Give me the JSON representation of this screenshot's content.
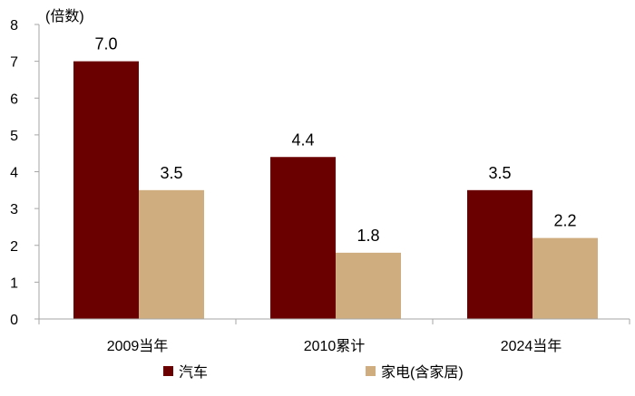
{
  "chart_data": {
    "type": "bar",
    "unit_label": "(倍数)",
    "categories": [
      "2009当年",
      "2010累计",
      "2024当年"
    ],
    "series": [
      {
        "name": "汽车",
        "values": [
          7.0,
          4.4,
          3.5
        ],
        "color": "#6b0000"
      },
      {
        "name": "家电(含家居)",
        "values": [
          3.5,
          1.8,
          2.2
        ],
        "color": "#cfad7f"
      }
    ],
    "data_labels": [
      [
        "7.0",
        "4.4",
        "3.5"
      ],
      [
        "3.5",
        "1.8",
        "2.2"
      ]
    ],
    "ylim": [
      0,
      8
    ],
    "yticks": [
      "0",
      "1",
      "2",
      "3",
      "4",
      "5",
      "6",
      "7",
      "8"
    ],
    "grid": false,
    "legend_position": "bottom"
  }
}
